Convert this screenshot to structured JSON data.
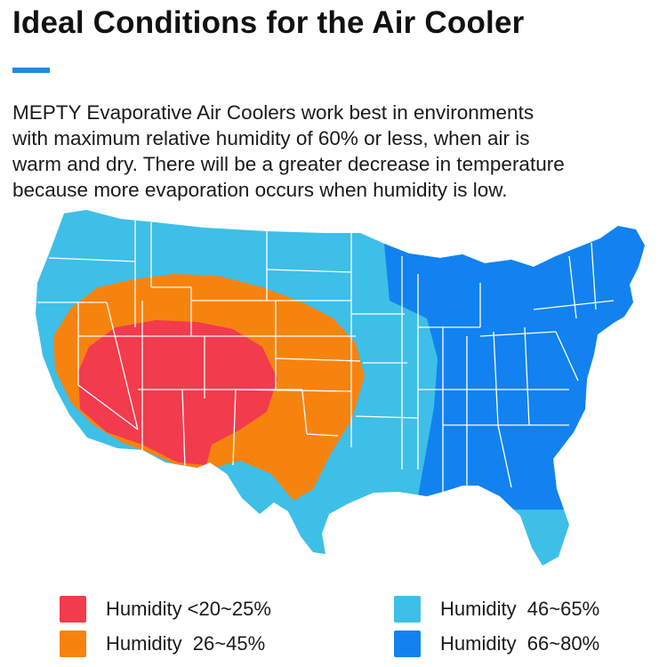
{
  "title": "Ideal Conditions for the Air Cooler",
  "description_lines": [
    "MEPTY Evaporative Air Coolers work best in environments",
    "with maximum relative humidity of 60% or less, when air is",
    "warm and dry. There will be a greater decrease in temperature",
    "because more evaporation occurs when humidity is low."
  ],
  "colors": {
    "accent": "#1e8ae6",
    "humidity_20_25": "#f23b4c",
    "humidity_26_45": "#f7830f",
    "humidity_46_65": "#3dbfe8",
    "humidity_66_80": "#1282f0",
    "state_border": "#ffffff"
  },
  "legend": [
    {
      "label": "Humidity <20~25%",
      "color": "#f23b4c"
    },
    {
      "label": "Humidity  26~45%",
      "color": "#f7830f"
    },
    {
      "label": "Humidity  46~65%",
      "color": "#3dbfe8"
    },
    {
      "label": "Humidity  66~80%",
      "color": "#1282f0"
    }
  ]
}
